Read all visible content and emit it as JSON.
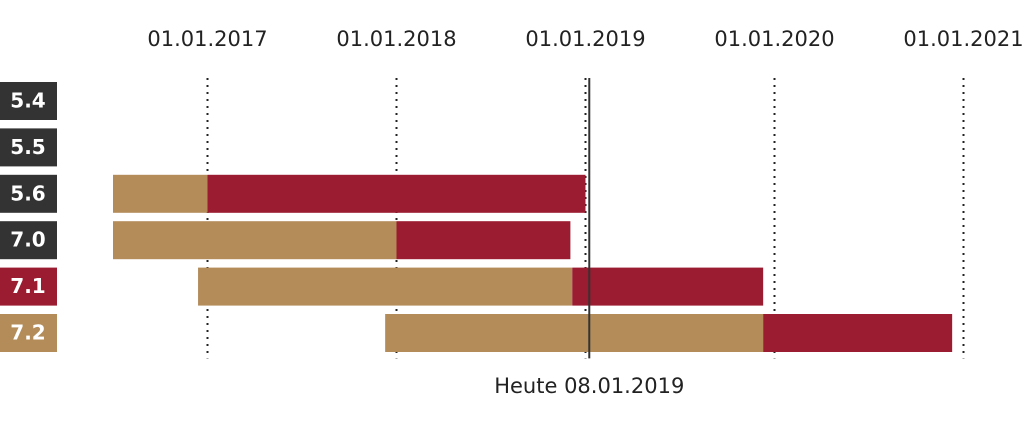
{
  "chart_data": {
    "type": "timeline",
    "categories": [
      "5.4",
      "5.5",
      "5.6",
      "7.0",
      "7.1",
      "7.2"
    ],
    "label_colors": [
      "#333333",
      "#333333",
      "#333333",
      "#333333",
      "#9b1b30",
      "#b38c5a"
    ],
    "series": [
      {
        "color": "#b38c5a",
        "start": [
          null,
          null,
          2016.5,
          2016.5,
          2016.95,
          2017.94
        ],
        "end": [
          null,
          null,
          2017.0,
          2018.0,
          2018.93,
          2019.94
        ]
      },
      {
        "color": "#9b1b30",
        "start": [
          null,
          null,
          2017.0,
          2018.0,
          2018.93,
          2019.94
        ],
        "end": [
          null,
          null,
          2019.0,
          2018.92,
          2019.94,
          2020.94
        ]
      }
    ],
    "xlim": [
      2016.5,
      2021.25
    ],
    "xticks": [
      {
        "value": 2017,
        "label": "01.01.2017"
      },
      {
        "value": 2018,
        "label": "01.01.2018"
      },
      {
        "value": 2019,
        "label": "01.01.2019"
      },
      {
        "value": 2020,
        "label": "01.01.2020"
      },
      {
        "value": 2021,
        "label": "01.01.2021"
      }
    ],
    "grid": true,
    "today": {
      "value": 2019.02,
      "label": "Heute 08.01.2019"
    }
  }
}
